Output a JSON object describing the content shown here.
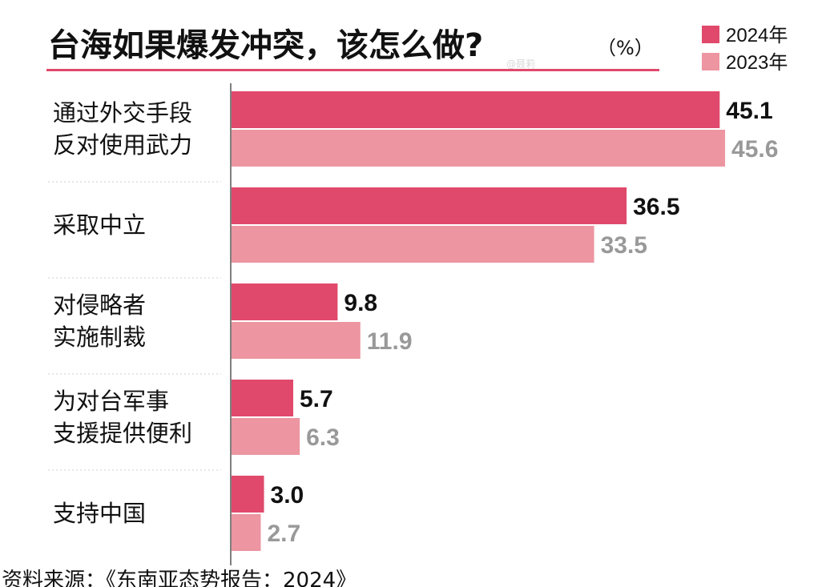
{
  "chart_data": {
    "type": "bar",
    "orientation": "horizontal",
    "title": "台海如果爆发冲突，该怎么做?",
    "unit": "（%）",
    "categories": [
      [
        "通过外交手段",
        "反对使用武力"
      ],
      [
        "采取中立"
      ],
      [
        "对侵略者",
        "实施制裁"
      ],
      [
        "为对台军事",
        "支援提供便利"
      ],
      [
        "支持中国"
      ]
    ],
    "series": [
      {
        "name": "2024年",
        "values": [
          45.1,
          36.5,
          9.8,
          5.7,
          3.0
        ],
        "labels": [
          "45.1",
          "36.5",
          "9.8",
          "5.7",
          "3.0"
        ],
        "color": "#e0496b",
        "label_color": "#111111"
      },
      {
        "name": "2023年",
        "values": [
          45.6,
          33.5,
          11.9,
          6.3,
          2.7
        ],
        "labels": [
          "45.6",
          "33.5",
          "11.9",
          "6.3",
          "2.7"
        ],
        "color": "#ed95a1",
        "label_color": "#999999"
      }
    ],
    "xlim": [
      0,
      50
    ],
    "legend_position": "top-right",
    "grid": false,
    "title_underline_color": "#e0496b",
    "source": "资料来源：《东南亚态势报告：2024》",
    "watermark": "@聂莉"
  }
}
